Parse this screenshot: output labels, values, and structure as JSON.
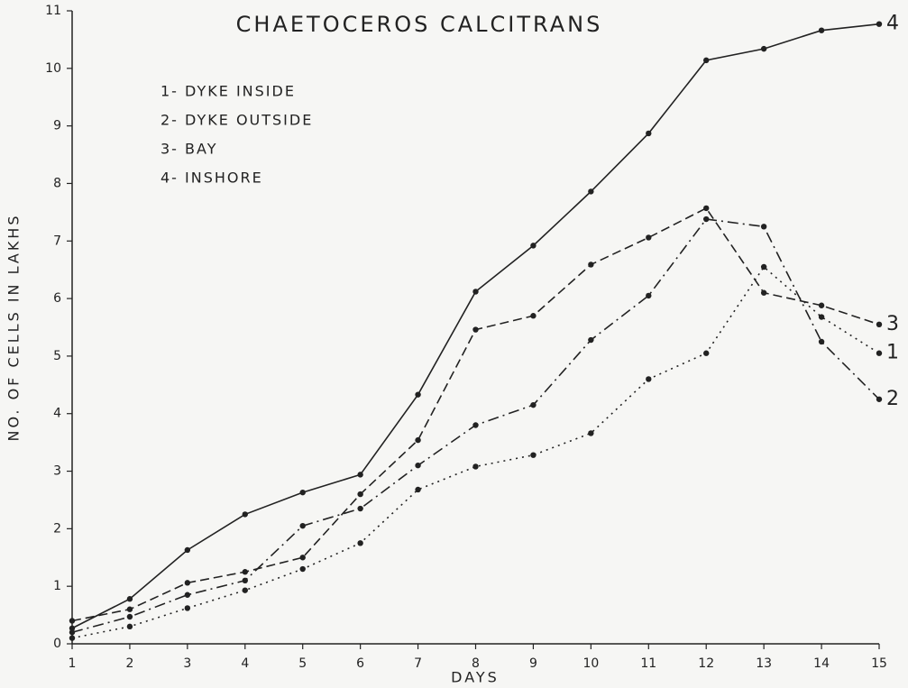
{
  "chart_data": {
    "type": "line",
    "title": "CHAETOCEROS CALCITRANS",
    "x_label": "DAYS",
    "y_label": "NO. OF CELLS IN LAKHS",
    "x": [
      1,
      2,
      3,
      4,
      5,
      6,
      7,
      8,
      9,
      10,
      11,
      12,
      13,
      14,
      15
    ],
    "xlim": [
      1,
      15
    ],
    "xticks": [
      1,
      2,
      3,
      4,
      5,
      6,
      7,
      8,
      9,
      10,
      11,
      12,
      13,
      14,
      15
    ],
    "ylim": [
      0,
      11
    ],
    "yticks": [
      0,
      1,
      2,
      3,
      4,
      5,
      6,
      7,
      8,
      9,
      10,
      11
    ],
    "grid": false,
    "series": [
      {
        "name": "1- DYKE INSIDE",
        "end_label": "1",
        "color": "#222222",
        "dash": "dotted",
        "values": [
          0.1,
          0.3,
          0.62,
          0.93,
          1.3,
          1.75,
          2.68,
          3.08,
          3.28,
          3.66,
          4.6,
          5.05,
          6.55,
          5.68,
          5.05
        ]
      },
      {
        "name": "2- DYKE OUTSIDE",
        "end_label": "2",
        "color": "#222222",
        "dash": "dash-dot",
        "values": [
          0.2,
          0.47,
          0.85,
          1.1,
          2.05,
          2.35,
          3.1,
          3.8,
          4.15,
          5.28,
          6.05,
          7.38,
          7.25,
          5.25,
          4.25
        ]
      },
      {
        "name": "3- BAY",
        "end_label": "3",
        "color": "#222222",
        "dash": "dashed",
        "values": [
          0.4,
          0.6,
          1.06,
          1.25,
          1.5,
          2.6,
          3.54,
          5.46,
          5.7,
          6.59,
          7.06,
          7.57,
          6.1,
          5.88,
          5.55
        ]
      },
      {
        "name": "4- INSHORE",
        "end_label": "4",
        "color": "#222222",
        "dash": "solid",
        "values": [
          0.27,
          0.78,
          1.63,
          2.25,
          2.63,
          2.94,
          4.33,
          6.12,
          6.92,
          7.86,
          8.87,
          10.14,
          10.34,
          10.66,
          10.77
        ]
      }
    ]
  }
}
